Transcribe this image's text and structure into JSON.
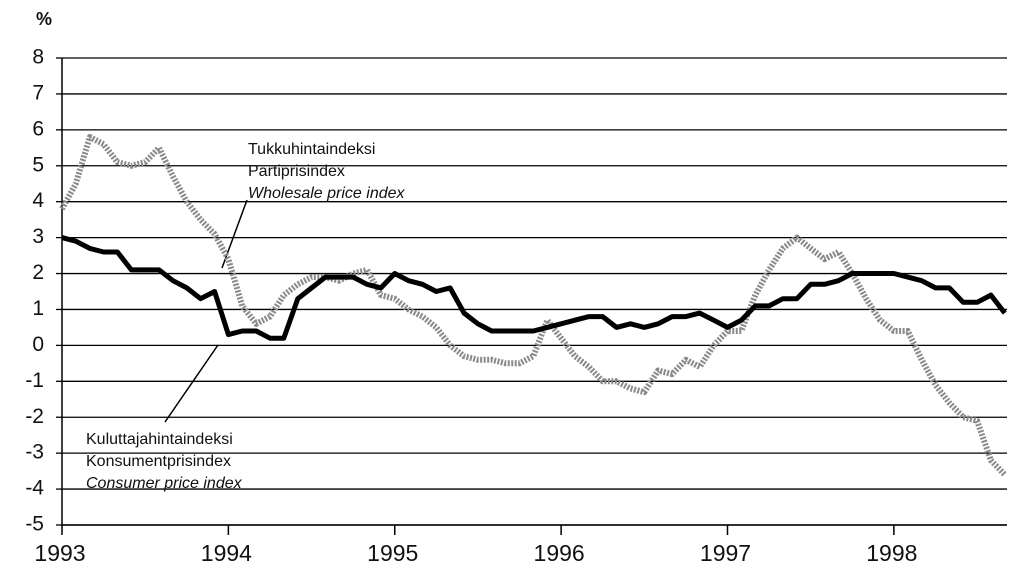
{
  "chart_data": {
    "type": "line",
    "y_label": "%",
    "x": [
      1993,
      1993.083,
      1993.167,
      1993.25,
      1993.333,
      1993.417,
      1993.5,
      1993.583,
      1993.667,
      1993.75,
      1993.833,
      1993.917,
      1994,
      1994.083,
      1994.167,
      1994.25,
      1994.333,
      1994.417,
      1994.5,
      1994.583,
      1994.667,
      1994.75,
      1994.833,
      1994.917,
      1995,
      1995.083,
      1995.167,
      1995.25,
      1995.333,
      1995.417,
      1995.5,
      1995.583,
      1995.667,
      1995.75,
      1995.833,
      1995.917,
      1996,
      1996.083,
      1996.167,
      1996.25,
      1996.333,
      1996.417,
      1996.5,
      1996.583,
      1996.667,
      1996.75,
      1996.833,
      1996.917,
      1997,
      1997.083,
      1997.167,
      1997.25,
      1997.333,
      1997.417,
      1997.5,
      1997.583,
      1997.667,
      1997.75,
      1997.833,
      1997.917,
      1998,
      1998.083,
      1998.167,
      1998.25,
      1998.333,
      1998.417,
      1998.5,
      1998.583,
      1998.667
    ],
    "series": [
      {
        "color": "#8a8a8a",
        "style": "dotted",
        "values": [
          3.8,
          4.5,
          5.8,
          5.6,
          5.1,
          5.0,
          5.1,
          5.5,
          4.7,
          4.0,
          3.5,
          3.1,
          2.4,
          1.1,
          0.6,
          0.8,
          1.4,
          1.7,
          1.9,
          1.9,
          1.8,
          2.0,
          2.1,
          1.4,
          1.3,
          1.0,
          0.8,
          0.5,
          0.0,
          -0.3,
          -0.4,
          -0.4,
          -0.5,
          -0.5,
          -0.3,
          0.7,
          0.2,
          -0.3,
          -0.6,
          -1.0,
          -1.0,
          -1.2,
          -1.3,
          -0.7,
          -0.8,
          -0.4,
          -0.6,
          0.0,
          0.4,
          0.4,
          1.4,
          2.1,
          2.7,
          3.0,
          2.7,
          2.4,
          2.6,
          2.0,
          1.3,
          0.7,
          0.4,
          0.4,
          -0.4,
          -1.1,
          -1.6,
          -2.0,
          -2.1,
          -3.2,
          -3.6
        ]
      },
      {
        "color": "#000000",
        "style": "solid",
        "values": [
          3.0,
          2.9,
          2.7,
          2.6,
          2.6,
          2.1,
          2.1,
          2.1,
          1.8,
          1.6,
          1.3,
          1.5,
          0.3,
          0.4,
          0.4,
          0.2,
          0.2,
          1.3,
          1.6,
          1.9,
          1.9,
          1.9,
          1.7,
          1.6,
          2.0,
          1.8,
          1.7,
          1.5,
          1.6,
          0.9,
          0.6,
          0.4,
          0.4,
          0.4,
          0.4,
          0.5,
          0.6,
          0.7,
          0.8,
          0.8,
          0.5,
          0.6,
          0.5,
          0.6,
          0.8,
          0.8,
          0.9,
          0.7,
          0.5,
          0.7,
          1.1,
          1.1,
          1.3,
          1.3,
          1.7,
          1.7,
          1.8,
          2.0,
          2.0,
          2.0,
          2.0,
          1.9,
          1.8,
          1.6,
          1.6,
          1.2,
          1.2,
          1.4,
          0.9
        ]
      }
    ],
    "annotations": [
      {
        "lines": [
          "Tukkuhintaindeksi",
          "Partiprisindex",
          "Wholesale price index"
        ]
      },
      {
        "lines": [
          "Kuluttajahintaindeksi",
          "Konsumentprisindex",
          "Consumer price index"
        ]
      }
    ],
    "xlim": [
      1993,
      1998.68
    ],
    "xticks": [
      1993,
      1994,
      1995,
      1996,
      1997,
      1998
    ],
    "ylim": [
      -5,
      8
    ],
    "yticks": [
      -5,
      -4,
      -3,
      -2,
      -1,
      0,
      1,
      2,
      3,
      4,
      5,
      6,
      7,
      8
    ],
    "grid": true
  }
}
